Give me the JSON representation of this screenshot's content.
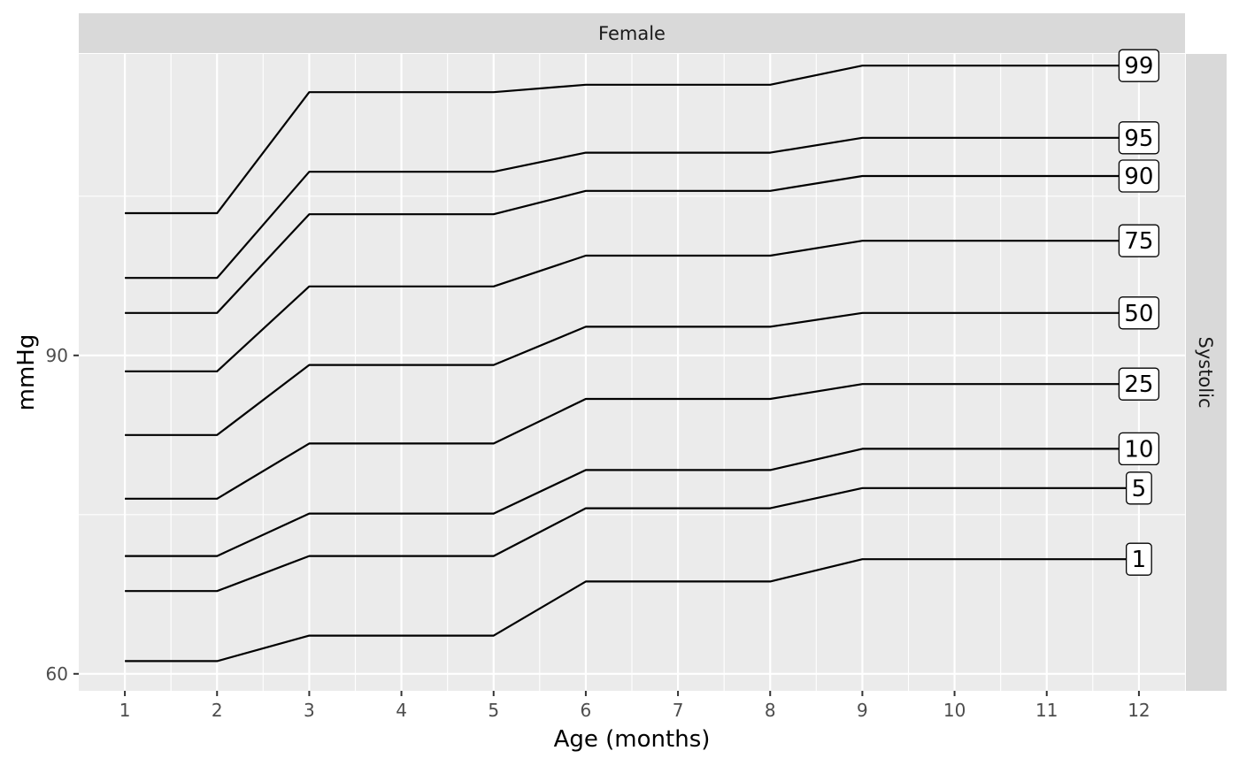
{
  "chart_data": {
    "type": "line",
    "facet": {
      "column": "Female",
      "row": "Systolic"
    },
    "xlabel": "Age (months)",
    "ylabel": "mmHg",
    "x": [
      1,
      2,
      3,
      4,
      5,
      6,
      7,
      8,
      9,
      10,
      11,
      12
    ],
    "xlim": [
      0.5,
      12.5
    ],
    "ylim": [
      58.4,
      118.4
    ],
    "x_ticks": [
      "1",
      "2",
      "3",
      "4",
      "5",
      "6",
      "7",
      "8",
      "9",
      "10",
      "11",
      "12"
    ],
    "y_ticks": [
      60,
      90
    ],
    "grid": true,
    "series": [
      {
        "name": "1",
        "label": "1",
        "values": [
          61.2,
          61.2,
          63.6,
          63.6,
          63.6,
          68.7,
          68.7,
          68.7,
          70.8,
          70.8,
          70.8,
          70.8
        ]
      },
      {
        "name": "5",
        "label": "5",
        "values": [
          67.8,
          67.8,
          71.1,
          71.1,
          71.1,
          75.6,
          75.6,
          75.6,
          77.5,
          77.5,
          77.5,
          77.5
        ]
      },
      {
        "name": "10",
        "label": "10",
        "values": [
          71.1,
          71.1,
          75.1,
          75.1,
          75.1,
          79.2,
          79.2,
          79.2,
          81.2,
          81.2,
          81.2,
          81.2
        ]
      },
      {
        "name": "25",
        "label": "25",
        "values": [
          76.5,
          76.5,
          81.7,
          81.7,
          81.7,
          85.9,
          85.9,
          85.9,
          87.3,
          87.3,
          87.3,
          87.3
        ]
      },
      {
        "name": "50",
        "label": "50",
        "values": [
          82.5,
          82.5,
          89.1,
          89.1,
          89.1,
          92.7,
          92.7,
          92.7,
          94.0,
          94.0,
          94.0,
          94.0
        ]
      },
      {
        "name": "75",
        "label": "75",
        "values": [
          88.5,
          88.5,
          96.5,
          96.5,
          96.5,
          99.4,
          99.4,
          99.4,
          100.8,
          100.8,
          100.8,
          100.8
        ]
      },
      {
        "name": "90",
        "label": "90",
        "values": [
          94.0,
          94.0,
          103.3,
          103.3,
          103.3,
          105.5,
          105.5,
          105.5,
          106.9,
          106.9,
          106.9,
          106.9
        ]
      },
      {
        "name": "95",
        "label": "95",
        "values": [
          97.3,
          97.3,
          107.3,
          107.3,
          107.3,
          109.1,
          109.1,
          109.1,
          110.5,
          110.5,
          110.5,
          110.5
        ]
      },
      {
        "name": "99",
        "label": "99",
        "values": [
          103.4,
          103.4,
          114.8,
          114.8,
          114.8,
          115.5,
          115.5,
          115.5,
          117.3,
          117.3,
          117.3,
          117.3
        ]
      }
    ]
  }
}
